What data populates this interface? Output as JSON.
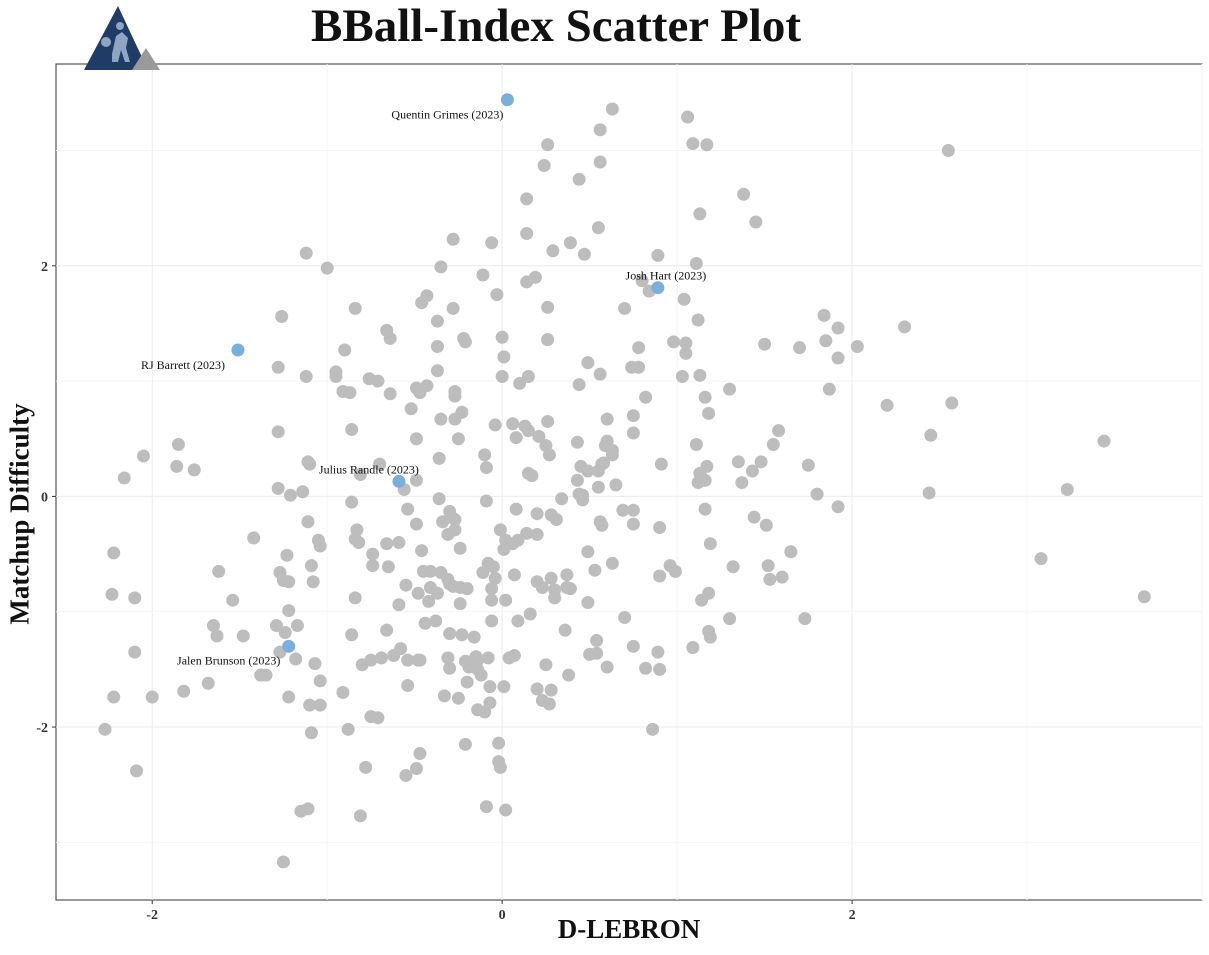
{
  "chart_data": {
    "type": "scatter",
    "title": "BBall-Index Scatter Plot",
    "xlabel": "D-LEBRON",
    "ylabel": "Matchup Difficulty",
    "xlim": [
      -2.55,
      4.0
    ],
    "ylim": [
      -3.5,
      3.75
    ],
    "x_ticks": [
      -2,
      0,
      2
    ],
    "y_ticks": [
      -2,
      0,
      2
    ],
    "x_tick_labels": [
      "-2",
      "0",
      "2"
    ],
    "y_tick_labels": [
      "-2",
      "0",
      "2"
    ],
    "grid": true,
    "colors": {
      "background_points": "#bdbdbd",
      "highlight_points": "#7aaedb",
      "grid": "#ebebeb",
      "frame": "#333333"
    },
    "highlighted": [
      {
        "label": "Quentin Grimes (2023)",
        "x": 0.03,
        "y": 3.44
      },
      {
        "label": "Josh Hart (2023)",
        "x": 0.89,
        "y": 1.81
      },
      {
        "label": "RJ Barrett (2023)",
        "x": -1.51,
        "y": 1.27
      },
      {
        "label": "Julius Randle (2023)",
        "x": -0.59,
        "y": 0.13
      },
      {
        "label": "Jalen Brunson (2023)",
        "x": -1.22,
        "y": -1.3
      }
    ],
    "points": [
      [
        0.63,
        3.36
      ],
      [
        1.06,
        3.29
      ],
      [
        0.56,
        3.18
      ],
      [
        0.26,
        3.05
      ],
      [
        1.09,
        3.06
      ],
      [
        1.17,
        3.05
      ],
      [
        0.56,
        2.9
      ],
      [
        0.24,
        2.87
      ],
      [
        0.44,
        2.75
      ],
      [
        2.55,
        3.0
      ],
      [
        1.38,
        2.62
      ],
      [
        0.14,
        2.58
      ],
      [
        1.13,
        2.45
      ],
      [
        1.45,
        2.38
      ],
      [
        0.55,
        2.33
      ],
      [
        0.14,
        2.28
      ],
      [
        0.39,
        2.2
      ],
      [
        -0.28,
        2.23
      ],
      [
        -0.06,
        2.2
      ],
      [
        0.29,
        2.13
      ],
      [
        0.47,
        2.1
      ],
      [
        0.89,
        2.09
      ],
      [
        -1.12,
        2.11
      ],
      [
        -1.0,
        1.98
      ],
      [
        -0.35,
        1.99
      ],
      [
        -0.11,
        1.92
      ],
      [
        1.11,
        2.02
      ],
      [
        0.19,
        1.9
      ],
      [
        0.14,
        1.86
      ],
      [
        0.8,
        1.87
      ],
      [
        0.84,
        1.78
      ],
      [
        -0.43,
        1.74
      ],
      [
        -0.03,
        1.75
      ],
      [
        -0.46,
        1.68
      ],
      [
        1.04,
        1.71
      ],
      [
        -0.28,
        1.63
      ],
      [
        0.26,
        1.64
      ],
      [
        0.7,
        1.63
      ],
      [
        -0.84,
        1.63
      ],
      [
        -1.26,
        1.56
      ],
      [
        1.84,
        1.57
      ],
      [
        1.92,
        1.46
      ],
      [
        2.3,
        1.47
      ],
      [
        -0.37,
        1.52
      ],
      [
        1.12,
        1.53
      ],
      [
        -0.66,
        1.44
      ],
      [
        -0.64,
        1.37
      ],
      [
        -0.22,
        1.37
      ],
      [
        -0.21,
        1.34
      ],
      [
        0.26,
        1.36
      ],
      [
        0.0,
        1.38
      ],
      [
        0.98,
        1.34
      ],
      [
        1.05,
        1.33
      ],
      [
        1.85,
        1.35
      ],
      [
        2.03,
        1.3
      ],
      [
        1.5,
        1.32
      ],
      [
        1.7,
        1.29
      ],
      [
        -0.37,
        1.3
      ],
      [
        -0.9,
        1.27
      ],
      [
        0.01,
        1.21
      ],
      [
        0.78,
        1.29
      ],
      [
        1.05,
        1.24
      ],
      [
        1.92,
        1.2
      ],
      [
        0.49,
        1.16
      ],
      [
        -1.28,
        1.12
      ],
      [
        0.74,
        1.12
      ],
      [
        0.78,
        1.12
      ],
      [
        -0.76,
        1.02
      ],
      [
        -0.71,
        1.0
      ],
      [
        1.13,
        1.05
      ],
      [
        0.56,
        1.06
      ],
      [
        1.03,
        1.04
      ],
      [
        -1.12,
        1.04
      ],
      [
        -0.95,
        1.08
      ],
      [
        -0.95,
        1.04
      ],
      [
        0.0,
        1.04
      ],
      [
        0.15,
        1.04
      ],
      [
        0.1,
        0.98
      ],
      [
        0.44,
        0.97
      ],
      [
        -0.37,
        1.09
      ],
      [
        -0.49,
        0.94
      ],
      [
        -0.43,
        0.96
      ],
      [
        -0.47,
        0.9
      ],
      [
        -0.27,
        0.91
      ],
      [
        -0.91,
        0.91
      ],
      [
        -0.87,
        0.9
      ],
      [
        -0.64,
        0.89
      ],
      [
        -0.27,
        0.87
      ],
      [
        0.82,
        0.86
      ],
      [
        1.3,
        0.93
      ],
      [
        1.87,
        0.93
      ],
      [
        2.2,
        0.79
      ],
      [
        2.57,
        0.81
      ],
      [
        -0.52,
        0.76
      ],
      [
        -0.35,
        0.67
      ],
      [
        -0.27,
        0.67
      ],
      [
        -0.23,
        0.73
      ],
      [
        0.06,
        0.63
      ],
      [
        0.13,
        0.61
      ],
      [
        0.15,
        0.57
      ],
      [
        0.26,
        0.65
      ],
      [
        0.6,
        0.67
      ],
      [
        0.75,
        0.7
      ],
      [
        1.18,
        0.72
      ],
      [
        1.16,
        0.86
      ],
      [
        -0.04,
        0.62
      ],
      [
        -0.86,
        0.58
      ],
      [
        -1.28,
        0.56
      ],
      [
        0.08,
        0.51
      ],
      [
        0.21,
        0.52
      ],
      [
        0.25,
        0.44
      ],
      [
        0.43,
        0.47
      ],
      [
        0.59,
        0.44
      ],
      [
        0.6,
        0.48
      ],
      [
        0.75,
        0.55
      ],
      [
        1.11,
        0.45
      ],
      [
        1.55,
        0.45
      ],
      [
        1.58,
        0.57
      ],
      [
        2.45,
        0.53
      ],
      [
        3.44,
        0.48
      ],
      [
        -0.49,
        0.5
      ],
      [
        -0.25,
        0.5
      ],
      [
        -1.85,
        0.45
      ],
      [
        -2.05,
        0.35
      ],
      [
        -0.36,
        0.33
      ],
      [
        -0.1,
        0.36
      ],
      [
        0.27,
        0.36
      ],
      [
        0.63,
        0.36
      ],
      [
        0.63,
        0.4
      ],
      [
        0.58,
        0.29
      ],
      [
        -1.11,
        0.3
      ],
      [
        -1.1,
        0.28
      ],
      [
        -0.7,
        0.28
      ],
      [
        -1.86,
        0.26
      ],
      [
        -1.76,
        0.23
      ],
      [
        -0.09,
        0.25
      ],
      [
        0.45,
        0.26
      ],
      [
        0.49,
        0.22
      ],
      [
        0.55,
        0.22
      ],
      [
        0.57,
        0.28
      ],
      [
        0.91,
        0.28
      ],
      [
        1.35,
        0.3
      ],
      [
        1.48,
        0.3
      ],
      [
        1.75,
        0.27
      ],
      [
        1.13,
        0.2
      ],
      [
        1.17,
        0.26
      ],
      [
        1.43,
        0.22
      ],
      [
        -0.81,
        0.19
      ],
      [
        0.15,
        0.2
      ],
      [
        0.17,
        0.18
      ],
      [
        -2.16,
        0.16
      ],
      [
        1.12,
        0.12
      ],
      [
        1.16,
        0.14
      ],
      [
        1.37,
        0.12
      ],
      [
        0.43,
        0.14
      ],
      [
        0.55,
        0.08
      ],
      [
        0.65,
        0.1
      ],
      [
        -0.56,
        0.06
      ],
      [
        -0.49,
        0.14
      ],
      [
        -1.28,
        0.07
      ],
      [
        -1.21,
        0.01
      ],
      [
        -1.14,
        0.04
      ],
      [
        0.44,
        0.02
      ],
      [
        0.46,
        0.01
      ],
      [
        0.34,
        -0.02
      ],
      [
        0.46,
        -0.03
      ],
      [
        -0.36,
        -0.02
      ],
      [
        -0.09,
        -0.04
      ],
      [
        2.44,
        0.03
      ],
      [
        1.8,
        0.02
      ],
      [
        3.23,
        0.06
      ],
      [
        1.92,
        -0.09
      ],
      [
        -0.86,
        -0.05
      ],
      [
        -0.54,
        -0.11
      ],
      [
        -0.3,
        -0.13
      ],
      [
        -0.34,
        -0.22
      ],
      [
        -0.29,
        -0.18
      ],
      [
        -0.27,
        -0.2
      ],
      [
        0.08,
        -0.11
      ],
      [
        0.2,
        -0.15
      ],
      [
        0.28,
        -0.16
      ],
      [
        0.31,
        -0.2
      ],
      [
        0.69,
        -0.12
      ],
      [
        0.75,
        -0.12
      ],
      [
        0.75,
        -0.24
      ],
      [
        1.16,
        -0.11
      ],
      [
        1.44,
        -0.18
      ],
      [
        1.51,
        -0.25
      ],
      [
        -0.49,
        -0.24
      ],
      [
        -1.11,
        -0.22
      ],
      [
        -0.83,
        -0.29
      ],
      [
        -0.27,
        -0.29
      ],
      [
        -0.01,
        -0.29
      ],
      [
        0.14,
        -0.32
      ],
      [
        0.56,
        -0.22
      ],
      [
        0.57,
        -0.25
      ],
      [
        0.9,
        -0.27
      ],
      [
        -1.42,
        -0.36
      ],
      [
        -1.05,
        -0.38
      ],
      [
        -1.04,
        -0.43
      ],
      [
        -0.84,
        -0.37
      ],
      [
        -0.82,
        -0.4
      ],
      [
        -0.66,
        -0.41
      ],
      [
        -0.59,
        -0.4
      ],
      [
        -0.31,
        -0.33
      ],
      [
        -0.24,
        -0.45
      ],
      [
        0.02,
        -0.38
      ],
      [
        0.06,
        -0.41
      ],
      [
        0.09,
        -0.38
      ],
      [
        0.2,
        -0.33
      ],
      [
        1.19,
        -0.41
      ],
      [
        -2.22,
        -0.49
      ],
      [
        -1.23,
        -0.51
      ],
      [
        -0.74,
        -0.5
      ],
      [
        -0.46,
        -0.47
      ],
      [
        0.01,
        -0.46
      ],
      [
        0.49,
        -0.48
      ],
      [
        1.65,
        -0.48
      ],
      [
        3.08,
        -0.54
      ],
      [
        -0.08,
        -0.58
      ],
      [
        -0.05,
        -0.61
      ],
      [
        0.63,
        -0.58
      ],
      [
        0.96,
        -0.6
      ],
      [
        0.99,
        -0.65
      ],
      [
        1.32,
        -0.61
      ],
      [
        1.52,
        -0.6
      ],
      [
        -1.09,
        -0.6
      ],
      [
        -0.74,
        -0.6
      ],
      [
        -0.65,
        -0.61
      ],
      [
        -0.45,
        -0.65
      ],
      [
        -0.41,
        -0.65
      ],
      [
        -0.35,
        -0.66
      ],
      [
        -0.31,
        -0.72
      ],
      [
        -0.11,
        -0.66
      ],
      [
        0.07,
        -0.68
      ],
      [
        0.2,
        -0.74
      ],
      [
        0.28,
        -0.71
      ],
      [
        0.37,
        -0.68
      ],
      [
        0.53,
        -0.64
      ],
      [
        -0.04,
        -0.71
      ],
      [
        -1.62,
        -0.65
      ],
      [
        -1.27,
        -0.66
      ],
      [
        -1.25,
        -0.73
      ],
      [
        -1.22,
        -0.74
      ],
      [
        -1.08,
        -0.74
      ],
      [
        -0.55,
        -0.77
      ],
      [
        -0.3,
        -0.76
      ],
      [
        -0.41,
        -0.79
      ],
      [
        -0.37,
        -0.84
      ],
      [
        -0.28,
        -0.78
      ],
      [
        -0.24,
        -0.79
      ],
      [
        -0.2,
        -0.8
      ],
      [
        -0.06,
        -0.8
      ],
      [
        0.23,
        -0.79
      ],
      [
        0.3,
        -0.81
      ],
      [
        0.37,
        -0.79
      ],
      [
        0.39,
        -0.8
      ],
      [
        0.9,
        -0.69
      ],
      [
        1.6,
        -0.7
      ],
      [
        1.53,
        -0.72
      ],
      [
        -2.23,
        -0.85
      ],
      [
        -2.1,
        -0.88
      ],
      [
        -1.54,
        -0.9
      ],
      [
        -1.22,
        -0.99
      ],
      [
        -0.84,
        -0.88
      ],
      [
        -0.59,
        -0.94
      ],
      [
        -0.48,
        -0.84
      ],
      [
        -0.42,
        -0.91
      ],
      [
        -0.24,
        -0.93
      ],
      [
        -0.06,
        -0.9
      ],
      [
        0.02,
        -0.9
      ],
      [
        0.3,
        -0.88
      ],
      [
        0.49,
        -0.92
      ],
      [
        1.14,
        -0.9
      ],
      [
        1.18,
        -0.84
      ],
      [
        3.67,
        -0.87
      ],
      [
        -0.06,
        -1.08
      ],
      [
        0.09,
        -1.08
      ],
      [
        0.16,
        -1.02
      ],
      [
        0.7,
        -1.05
      ],
      [
        1.3,
        -1.06
      ],
      [
        1.73,
        -1.06
      ],
      [
        -1.65,
        -1.12
      ],
      [
        -1.29,
        -1.12
      ],
      [
        -1.17,
        -1.12
      ],
      [
        -0.66,
        -1.16
      ],
      [
        -0.44,
        -1.1
      ],
      [
        -0.38,
        -1.08
      ],
      [
        0.36,
        -1.16
      ],
      [
        1.18,
        -1.17
      ],
      [
        1.19,
        -1.22
      ],
      [
        -1.63,
        -1.21
      ],
      [
        -1.48,
        -1.21
      ],
      [
        -1.24,
        -1.18
      ],
      [
        -0.86,
        -1.2
      ],
      [
        -0.3,
        -1.19
      ],
      [
        -0.23,
        -1.2
      ],
      [
        -0.16,
        -1.22
      ],
      [
        0.54,
        -1.25
      ],
      [
        0.75,
        -1.3
      ],
      [
        -0.58,
        -1.32
      ],
      [
        -0.48,
        -1.42
      ],
      [
        -0.31,
        -1.4
      ],
      [
        -0.08,
        -1.4
      ],
      [
        0.04,
        -1.4
      ],
      [
        0.07,
        -1.38
      ],
      [
        0.5,
        -1.37
      ],
      [
        0.54,
        -1.36
      ],
      [
        0.89,
        -1.35
      ],
      [
        1.09,
        -1.31
      ],
      [
        -2.1,
        -1.35
      ],
      [
        -1.27,
        -1.35
      ],
      [
        -1.18,
        -1.41
      ],
      [
        -1.07,
        -1.45
      ],
      [
        -0.8,
        -1.46
      ],
      [
        -0.75,
        -1.42
      ],
      [
        -0.69,
        -1.4
      ],
      [
        -0.62,
        -1.38
      ],
      [
        -0.54,
        -1.42
      ],
      [
        -0.47,
        -1.42
      ],
      [
        -0.21,
        -1.43
      ],
      [
        -0.19,
        -1.48
      ],
      [
        -0.15,
        -1.46
      ],
      [
        -0.15,
        -1.39
      ],
      [
        -0.14,
        -1.42
      ],
      [
        -0.3,
        -1.49
      ],
      [
        -0.14,
        -1.5
      ],
      [
        0.25,
        -1.46
      ],
      [
        0.6,
        -1.48
      ],
      [
        0.82,
        -1.49
      ],
      [
        0.9,
        -1.5
      ],
      [
        -1.38,
        -1.55
      ],
      [
        -1.35,
        -1.55
      ],
      [
        -0.12,
        -1.55
      ],
      [
        0.38,
        -1.55
      ],
      [
        -1.04,
        -1.6
      ],
      [
        -0.2,
        -1.61
      ],
      [
        -1.68,
        -1.62
      ],
      [
        -0.54,
        -1.64
      ],
      [
        -0.07,
        -1.65
      ],
      [
        0.01,
        -1.65
      ],
      [
        0.2,
        -1.67
      ],
      [
        0.28,
        -1.68
      ],
      [
        -2.22,
        -1.74
      ],
      [
        -2.0,
        -1.74
      ],
      [
        -1.82,
        -1.69
      ],
      [
        -1.22,
        -1.74
      ],
      [
        -0.91,
        -1.7
      ],
      [
        -0.33,
        -1.73
      ],
      [
        -0.25,
        -1.75
      ],
      [
        -0.07,
        -1.79
      ],
      [
        0.23,
        -1.77
      ],
      [
        0.27,
        -1.8
      ],
      [
        -1.1,
        -1.81
      ],
      [
        -1.04,
        -1.81
      ],
      [
        -0.75,
        -1.91
      ],
      [
        -0.71,
        -1.92
      ],
      [
        -0.14,
        -1.85
      ],
      [
        -0.1,
        -1.87
      ],
      [
        0.86,
        -2.02
      ],
      [
        -2.27,
        -2.02
      ],
      [
        -1.09,
        -2.05
      ],
      [
        -0.88,
        -2.02
      ],
      [
        -0.21,
        -2.15
      ],
      [
        -0.02,
        -2.14
      ],
      [
        -0.47,
        -2.23
      ],
      [
        -0.02,
        -2.3
      ],
      [
        -0.01,
        -2.35
      ],
      [
        -0.78,
        -2.35
      ],
      [
        -0.49,
        -2.36
      ],
      [
        -0.55,
        -2.42
      ],
      [
        -2.09,
        -2.38
      ],
      [
        -1.15,
        -2.73
      ],
      [
        -1.11,
        -2.71
      ],
      [
        -0.81,
        -2.77
      ],
      [
        -0.09,
        -2.69
      ],
      [
        0.02,
        -2.72
      ],
      [
        -1.25,
        -3.17
      ]
    ]
  }
}
